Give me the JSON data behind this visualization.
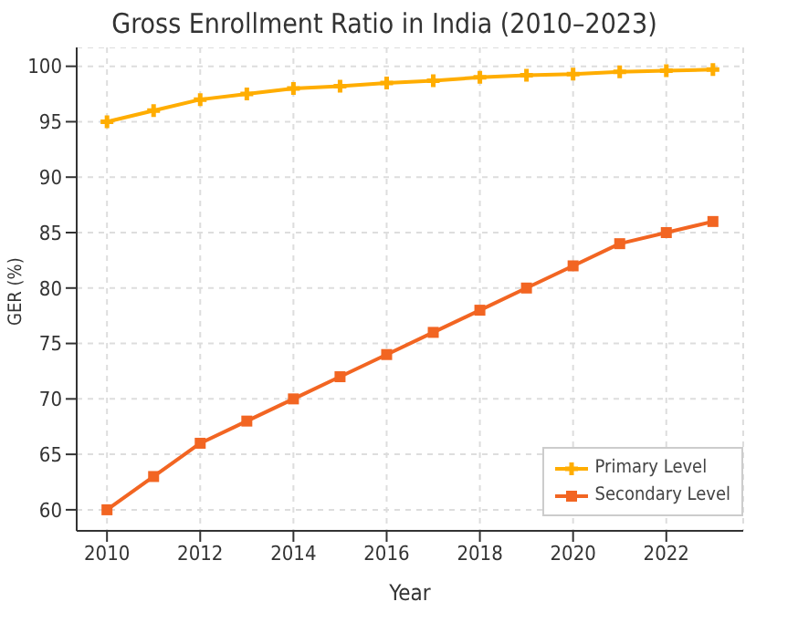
{
  "chart_data": {
    "type": "line",
    "title": "Gross Enrollment Ratio in India (2010–2023)",
    "xlabel": "Year",
    "ylabel": "GER (%)",
    "x": [
      2010,
      2011,
      2012,
      2013,
      2014,
      2015,
      2016,
      2017,
      2018,
      2019,
      2020,
      2021,
      2022,
      2023
    ],
    "series": [
      {
        "name": "Primary Level",
        "color": "#ffad00",
        "marker": "cross",
        "values": [
          95,
          96,
          97,
          97.5,
          98,
          98.2,
          98.5,
          98.7,
          99,
          99.2,
          99.3,
          99.5,
          99.6,
          99.7
        ]
      },
      {
        "name": "Secondary Level",
        "color": "#f26522",
        "marker": "square",
        "values": [
          60,
          63,
          66,
          68,
          70,
          72,
          74,
          76,
          78,
          80,
          82,
          84,
          85,
          86
        ]
      }
    ],
    "xlim": [
      2009.35,
      2023.65
    ],
    "xticks": [
      2010,
      2012,
      2014,
      2016,
      2018,
      2020,
      2022
    ],
    "ylim": [
      58.1,
      101.7
    ],
    "yticks": [
      60,
      65,
      70,
      75,
      80,
      85,
      90,
      95,
      100
    ],
    "grid": true,
    "legend": "bottom right"
  }
}
